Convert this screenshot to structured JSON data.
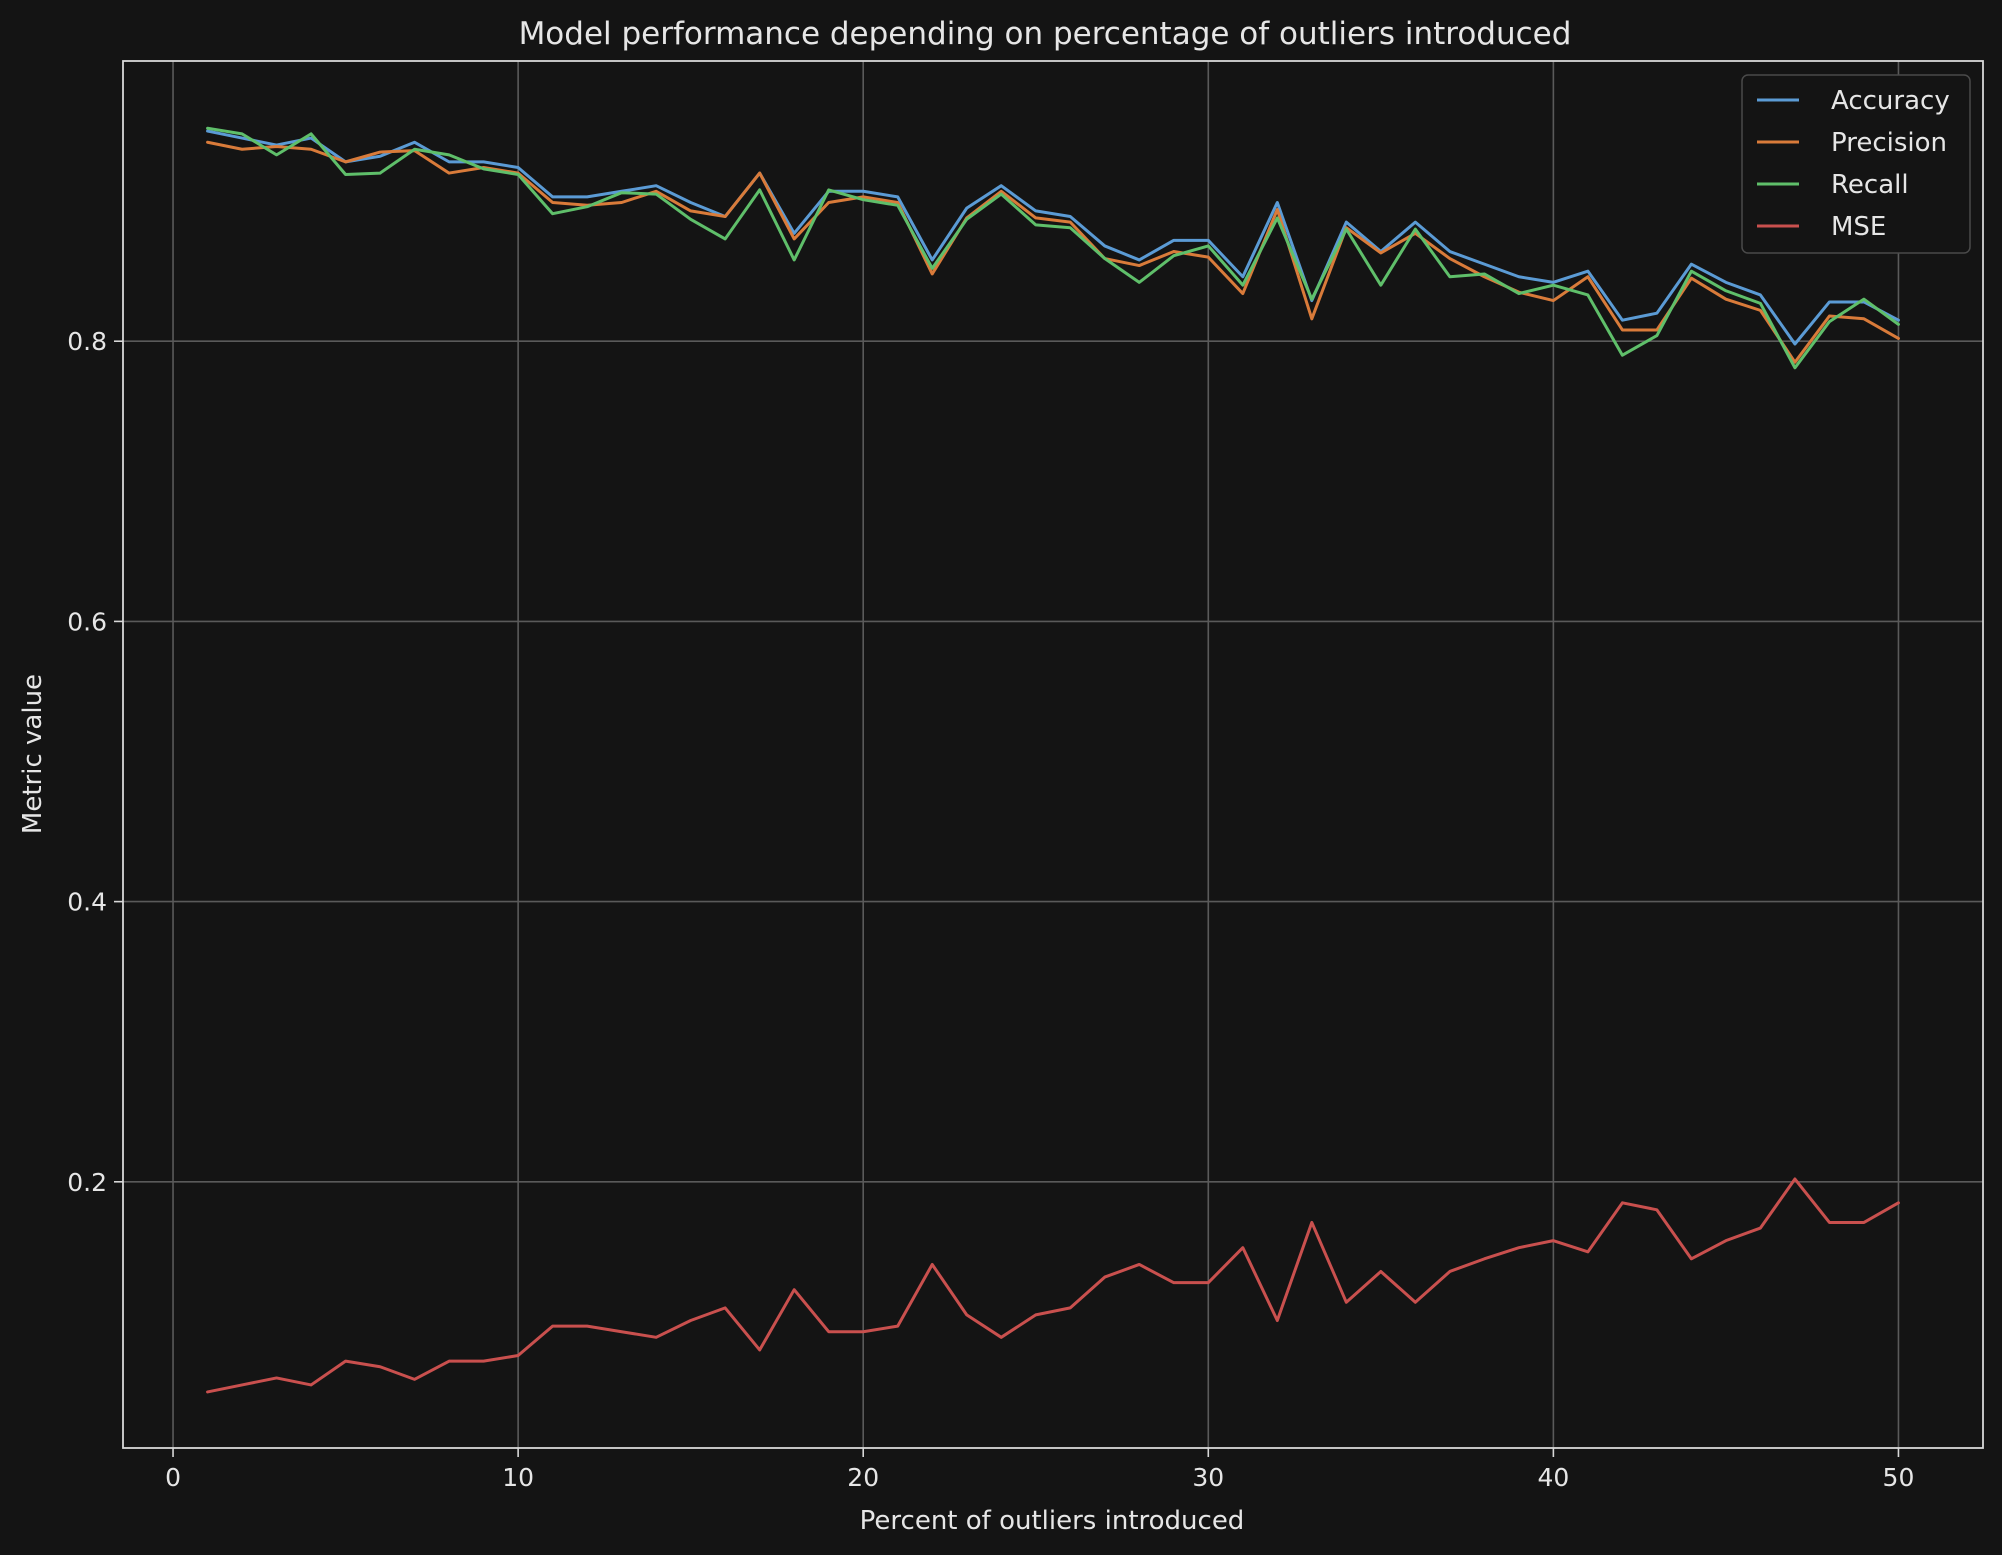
{
  "chart_data": {
    "type": "line",
    "title": "Model performance depending on percentage of outliers introduced",
    "xlabel": "Percent of outliers introduced",
    "ylabel": "Metric value",
    "xlim": [
      -1.45,
      52.45
    ],
    "ylim": [
      0.01,
      1.0
    ],
    "xticks": [
      0,
      10,
      20,
      30,
      40,
      50
    ],
    "xtick_labels": [
      "0",
      "10",
      "20",
      "30",
      "40",
      "50"
    ],
    "yticks": [
      0.2,
      0.4,
      0.6,
      0.8
    ],
    "ytick_labels": [
      "0.2",
      "0.4",
      "0.6",
      "0.8"
    ],
    "grid": true,
    "legend_position": "top-right",
    "x": [
      1,
      2,
      3,
      4,
      5,
      6,
      7,
      8,
      9,
      10,
      11,
      12,
      13,
      14,
      15,
      16,
      17,
      18,
      19,
      20,
      21,
      22,
      23,
      24,
      25,
      26,
      27,
      28,
      29,
      30,
      31,
      32,
      33,
      34,
      35,
      36,
      37,
      38,
      39,
      40,
      41,
      42,
      43,
      44,
      45,
      46,
      47,
      48,
      49,
      50
    ],
    "series": [
      {
        "name": "Accuracy",
        "color": "#5b9bd5",
        "values": [
          0.95,
          0.945,
          0.94,
          0.945,
          0.928,
          0.932,
          0.942,
          0.928,
          0.928,
          0.924,
          0.903,
          0.903,
          0.907,
          0.911,
          0.899,
          0.889,
          0.92,
          0.877,
          0.907,
          0.907,
          0.903,
          0.858,
          0.895,
          0.911,
          0.893,
          0.889,
          0.868,
          0.858,
          0.872,
          0.872,
          0.846,
          0.899,
          0.829,
          0.885,
          0.864,
          0.885,
          0.864,
          0.855,
          0.846,
          0.842,
          0.85,
          0.815,
          0.82,
          0.855,
          0.842,
          0.833,
          0.798,
          0.828,
          0.828,
          0.815
        ]
      },
      {
        "name": "Precision",
        "color": "#d97b3a",
        "values": [
          0.942,
          0.937,
          0.939,
          0.937,
          0.928,
          0.935,
          0.936,
          0.92,
          0.924,
          0.92,
          0.899,
          0.897,
          0.899,
          0.907,
          0.893,
          0.889,
          0.92,
          0.873,
          0.899,
          0.903,
          0.899,
          0.848,
          0.888,
          0.907,
          0.888,
          0.885,
          0.859,
          0.854,
          0.864,
          0.86,
          0.834,
          0.894,
          0.816,
          0.881,
          0.863,
          0.877,
          0.859,
          0.846,
          0.835,
          0.829,
          0.846,
          0.808,
          0.808,
          0.845,
          0.83,
          0.822,
          0.785,
          0.818,
          0.816,
          0.802
        ]
      },
      {
        "name": "Recall",
        "color": "#5fbf6a",
        "values": [
          0.952,
          0.948,
          0.933,
          0.948,
          0.919,
          0.92,
          0.937,
          0.933,
          0.923,
          0.919,
          0.891,
          0.896,
          0.906,
          0.905,
          0.887,
          0.873,
          0.908,
          0.858,
          0.908,
          0.901,
          0.897,
          0.852,
          0.887,
          0.905,
          0.883,
          0.881,
          0.859,
          0.842,
          0.861,
          0.868,
          0.84,
          0.888,
          0.83,
          0.88,
          0.84,
          0.88,
          0.846,
          0.848,
          0.834,
          0.84,
          0.833,
          0.79,
          0.804,
          0.85,
          0.836,
          0.827,
          0.781,
          0.814,
          0.83,
          0.812
        ]
      },
      {
        "name": "MSE",
        "color": "#c9504e",
        "values": [
          0.05,
          0.055,
          0.06,
          0.055,
          0.072,
          0.068,
          0.059,
          0.072,
          0.072,
          0.076,
          0.097,
          0.097,
          0.093,
          0.089,
          0.101,
          0.11,
          0.08,
          0.123,
          0.093,
          0.093,
          0.097,
          0.141,
          0.105,
          0.089,
          0.105,
          0.11,
          0.132,
          0.141,
          0.128,
          0.128,
          0.153,
          0.101,
          0.171,
          0.114,
          0.136,
          0.114,
          0.136,
          0.145,
          0.153,
          0.158,
          0.15,
          0.185,
          0.18,
          0.145,
          0.158,
          0.167,
          0.202,
          0.171,
          0.171,
          0.185
        ]
      }
    ]
  }
}
